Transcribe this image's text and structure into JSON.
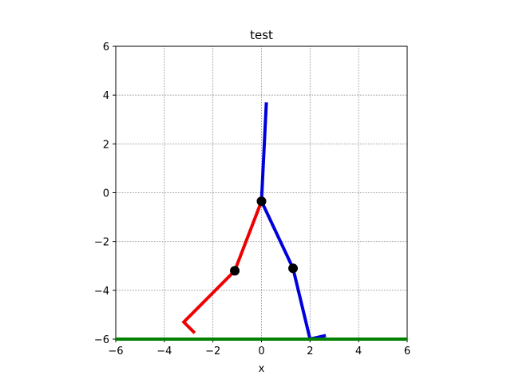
{
  "chart_data": {
    "type": "line",
    "title": "test",
    "xlabel": "x",
    "ylabel": "",
    "xlim": [
      -6,
      6
    ],
    "ylim": [
      -6,
      6
    ],
    "xticks": [
      -6,
      -4,
      -2,
      0,
      2,
      4,
      6
    ],
    "yticks": [
      -6,
      -4,
      -2,
      0,
      2,
      4,
      6
    ],
    "xtick_labels": [
      "−6",
      "−4",
      "−2",
      "0",
      "2",
      "4",
      "6"
    ],
    "ytick_labels": [
      "−6",
      "−4",
      "−2",
      "0",
      "2",
      "4",
      "6"
    ],
    "grid": true,
    "series": [
      {
        "color": "#0000dd",
        "points": [
          [
            0.0,
            -0.35
          ],
          [
            0.2,
            3.7
          ]
        ]
      },
      {
        "color": "#ee0000",
        "points": [
          [
            0.0,
            -0.35
          ],
          [
            -1.1,
            -3.2
          ],
          [
            -3.2,
            -5.3
          ],
          [
            -2.75,
            -5.75
          ]
        ]
      },
      {
        "color": "#0000dd",
        "points": [
          [
            0.0,
            -0.35
          ],
          [
            1.3,
            -3.1
          ],
          [
            2.0,
            -6.0
          ],
          [
            2.65,
            -5.85
          ]
        ]
      },
      {
        "color": "#008000",
        "points": [
          [
            -6,
            -6.0
          ],
          [
            6,
            -6.0
          ]
        ]
      }
    ],
    "markers": [
      [
        0.0,
        -0.35
      ],
      [
        -1.1,
        -3.2
      ],
      [
        1.3,
        -3.1
      ]
    ]
  }
}
